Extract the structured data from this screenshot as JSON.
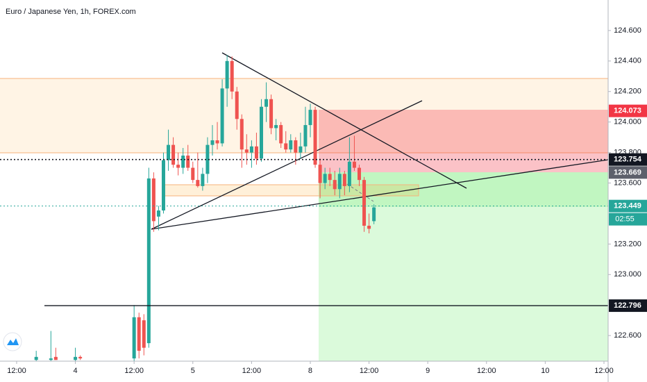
{
  "chart_data": {
    "type": "candlestick",
    "title": "Euro / Japanese Yen, 1h, FOREX.com",
    "up_color": "#26a69a",
    "down_color": "#ef5350",
    "x": [
      4,
      7,
      8,
      12,
      13,
      24,
      25,
      26,
      27,
      28,
      29,
      30,
      31,
      32,
      33,
      34,
      35,
      36,
      37,
      38,
      39,
      40,
      41,
      42,
      43,
      44,
      45,
      46,
      47,
      48,
      49,
      50,
      51,
      52,
      53,
      54,
      55,
      56,
      57,
      58,
      59,
      60,
      61,
      62,
      63,
      64,
      65,
      66,
      67,
      68,
      69,
      70,
      71,
      72,
      73
    ],
    "open": [
      122.44,
      122.44,
      122.46,
      122.44,
      122.46,
      122.45,
      122.72,
      122.7,
      122.55,
      123.63,
      123.38,
      123.42,
      123.75,
      123.85,
      123.72,
      123.7,
      123.78,
      123.7,
      123.62,
      123.58,
      123.66,
      123.85,
      123.88,
      123.86,
      124.22,
      124.4,
      124.2,
      124.02,
      123.82,
      123.8,
      123.84,
      123.76,
      124.1,
      124.15,
      123.96,
      123.98,
      123.86,
      123.82,
      123.88,
      123.8,
      123.84,
      123.98,
      124.08,
      123.72,
      123.6,
      123.66,
      123.62,
      123.56,
      123.66,
      123.58,
      123.74,
      123.7,
      123.62,
      123.32,
      123.35
    ],
    "high": [
      122.5,
      122.63,
      122.52,
      122.52,
      122.47,
      122.8,
      122.75,
      122.74,
      123.7,
      123.67,
      123.45,
      123.8,
      123.95,
      123.9,
      123.8,
      123.83,
      123.85,
      123.74,
      123.8,
      123.7,
      123.9,
      123.98,
      124.0,
      124.28,
      124.44,
      124.43,
      124.23,
      124.05,
      123.92,
      123.88,
      123.93,
      124.15,
      124.26,
      124.18,
      124.02,
      124.0,
      123.94,
      123.92,
      123.9,
      123.93,
      124.1,
      124.12,
      124.1,
      123.76,
      123.7,
      123.7,
      123.68,
      123.7,
      123.68,
      123.9,
      123.91,
      123.72,
      123.64,
      123.4,
      123.46
    ],
    "low": [
      122.43,
      122.43,
      122.44,
      122.43,
      122.44,
      122.43,
      122.45,
      122.47,
      122.52,
      123.28,
      123.29,
      123.4,
      123.68,
      123.7,
      123.65,
      123.66,
      123.68,
      123.6,
      123.57,
      123.55,
      123.6,
      123.78,
      123.82,
      123.84,
      124.1,
      124.15,
      123.95,
      123.7,
      123.72,
      123.7,
      123.72,
      123.74,
      124.0,
      123.92,
      123.88,
      123.83,
      123.8,
      123.8,
      123.72,
      123.76,
      123.8,
      123.9,
      123.7,
      123.5,
      123.56,
      123.58,
      123.52,
      123.5,
      123.52,
      123.54,
      123.68,
      123.58,
      123.28,
      123.27,
      123.33
    ],
    "close": [
      122.46,
      122.45,
      122.44,
      122.46,
      122.45,
      122.72,
      122.5,
      122.52,
      123.63,
      123.35,
      123.42,
      123.75,
      123.85,
      123.72,
      123.7,
      123.78,
      123.7,
      123.62,
      123.58,
      123.66,
      123.85,
      123.88,
      123.86,
      124.22,
      124.4,
      124.2,
      124.02,
      123.82,
      123.8,
      123.84,
      123.76,
      124.1,
      124.15,
      123.96,
      123.98,
      123.86,
      123.82,
      123.88,
      123.8,
      123.84,
      123.98,
      124.08,
      123.72,
      123.6,
      123.66,
      123.62,
      123.56,
      123.66,
      123.58,
      123.74,
      123.7,
      123.62,
      123.32,
      123.3,
      123.44
    ],
    "xlim": [
      -3.4,
      120.85
    ],
    "xticks": [
      {
        "value": 0,
        "label": "12:00"
      },
      {
        "value": 12,
        "label": "4"
      },
      {
        "value": 24,
        "label": "12:00"
      },
      {
        "value": 36,
        "label": "5"
      },
      {
        "value": 48,
        "label": "12:00"
      },
      {
        "value": 60,
        "label": "8"
      },
      {
        "value": 72,
        "label": "12:00"
      },
      {
        "value": 84,
        "label": "9"
      },
      {
        "value": 96,
        "label": "12:00"
      },
      {
        "value": 108,
        "label": "10"
      },
      {
        "value": 120,
        "label": "12:00"
      }
    ],
    "ylim": [
      122.432,
      124.8
    ],
    "yticks": [
      {
        "value": 124.6,
        "label": "124.600"
      },
      {
        "value": 124.4,
        "label": "124.400"
      },
      {
        "value": 124.2,
        "label": "124.200"
      },
      {
        "value": 124.0,
        "label": "124.000"
      },
      {
        "value": 123.8,
        "label": "123.800"
      },
      {
        "value": 123.6,
        "label": "123.600"
      },
      {
        "value": 123.2,
        "label": "123.200"
      },
      {
        "value": 123.0,
        "label": "123.000"
      },
      {
        "value": 122.6,
        "label": "122.600"
      }
    ],
    "price_labels": [
      {
        "value": 124.073,
        "label": "124.073",
        "color": "#f23645"
      },
      {
        "value": 123.754,
        "label": "123.754",
        "color": "#131722"
      },
      {
        "value": 123.669,
        "label": "123.669",
        "color": "#5d606b"
      },
      {
        "value": 123.449,
        "label": "123.449",
        "color": "#26a69a"
      },
      {
        "value": 122.796,
        "label": "122.796",
        "color": "#131722"
      }
    ],
    "countdown": "02:55"
  }
}
